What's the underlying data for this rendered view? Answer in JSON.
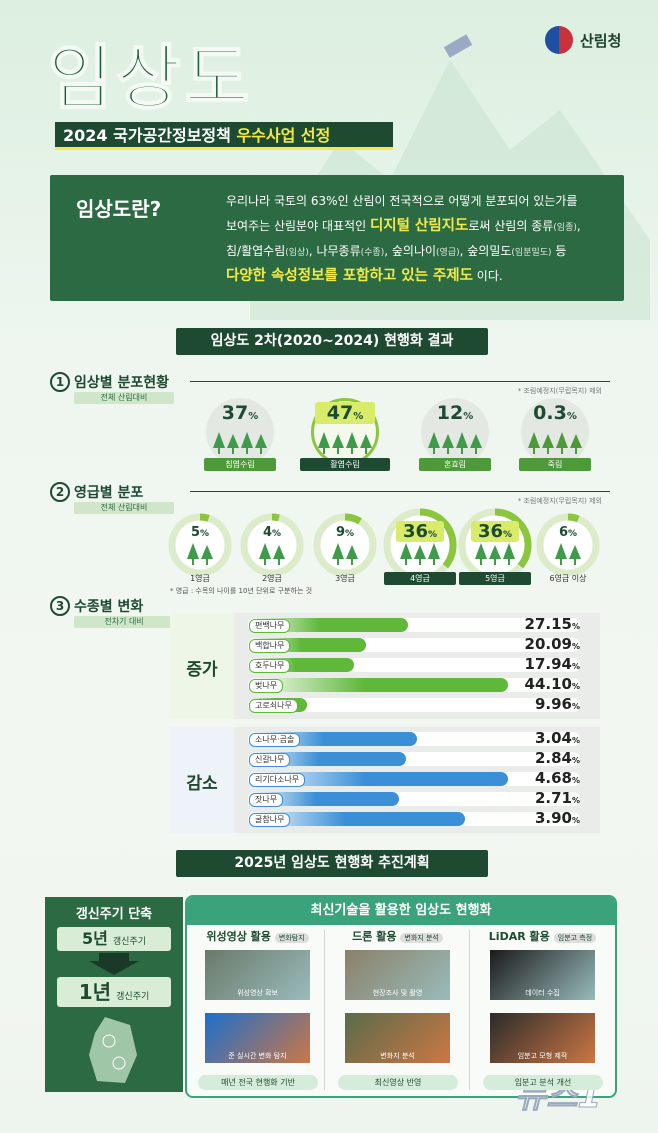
{
  "logo": "산림청",
  "title": "임상도",
  "subtitle": {
    "text": "2024 국가공간정보정책",
    "highlight": "우수사업 선정"
  },
  "definition": {
    "heading": "임상도란?",
    "lines": [
      [
        "우리나라 국토의 63%인 산림이 전국적으로 어떻게 분포되어 있는가를"
      ],
      [
        "보여주는 산림분야 대표적인 ",
        "디지털 산림지도",
        "로써 산림의 종류",
        "(임종)",
        ","
      ],
      [
        "침/활엽수림",
        "(임상)",
        ", 나무종류",
        "(수종)",
        ", 숲의나이",
        "(영급)",
        ", 숲의밀도",
        "(임분밀도)",
        " 등"
      ],
      [
        "다양한 속성정보를 포함하고 있는 ",
        "주제도",
        " 이다."
      ]
    ]
  },
  "results": {
    "heading": "임상도 2차(2020~2024) 현행화 결과",
    "sections": [
      {
        "number": 1,
        "title": "임상별 분포현황",
        "basis": "전체 산림대비",
        "note": "* 조림예정지(무립목지) 제외",
        "items": [
          {
            "value": 37,
            "unit": "%",
            "name": "침엽수림"
          },
          {
            "value": 47,
            "unit": "%",
            "name": "활엽수림",
            "highlight": true
          },
          {
            "value": 12,
            "unit": "%",
            "name": "혼효림"
          },
          {
            "value": 0.3,
            "unit": "%",
            "name": "죽림"
          }
        ]
      },
      {
        "number": 2,
        "title": "영급별 분포",
        "basis": "전체 산림대비",
        "note": "* 조림예정지(무립목지) 제외",
        "items": [
          {
            "value": 5,
            "unit": "%",
            "name": "1영급"
          },
          {
            "value": 4,
            "unit": "%",
            "name": "2영급"
          },
          {
            "value": 9,
            "unit": "%",
            "name": "3영급"
          },
          {
            "value": 36,
            "unit": "%",
            "name": "4영급",
            "highlight": true
          },
          {
            "value": 36,
            "unit": "%",
            "name": "5영급",
            "highlight": true
          },
          {
            "value": 6,
            "unit": "%",
            "name": "6영급 이상"
          }
        ],
        "footnote": "* 영급 : 수목의 나이를 10년 단위로 구분하는 것"
      },
      {
        "number": 3,
        "title": "수종별 변화",
        "basis": "전차기 대비",
        "groups": [
          {
            "label": "증가",
            "color": "#5fb83a",
            "names": [
              "편백나무",
              "백합나무",
              "호두나무",
              "벚나무",
              "고로쇠나무"
            ],
            "values": [
              27.15,
              20.09,
              17.94,
              44.1,
              9.96
            ],
            "value_labels": [
              "27.15",
              "20.09",
              "17.94",
              "44.10",
              "9.96"
            ],
            "unit": "%"
          },
          {
            "label": "감소",
            "color": "#3a8fd6",
            "names": [
              "소나무·곰솔",
              "신갈나무",
              "리기다소나무",
              "잣나무",
              "굴참나무"
            ],
            "values": [
              3.04,
              2.84,
              4.68,
              2.71,
              3.9
            ],
            "value_labels": [
              "3.04",
              "2.84",
              "4.68",
              "2.71",
              "3.90"
            ],
            "unit": "%"
          }
        ]
      }
    ]
  },
  "plan": {
    "heading": "2025년 임상도 현행화 추진계획",
    "cycle": {
      "title": "갱신주기 단축",
      "before": {
        "value": "5년",
        "label": "갱신주기"
      },
      "after": {
        "value": "1년",
        "label": "갱신주기"
      }
    },
    "tech": {
      "title": "최신기술을 활용한 임상도 현행화",
      "columns": [
        {
          "name": "위성영상 활용",
          "tag": "변화탐지",
          "captions": [
            "위성영상 확보",
            "준 실시간 변화 탐지"
          ],
          "result": "매년 전국 현행화 기반"
        },
        {
          "name": "드론 활용",
          "tag": "변화지 분석",
          "captions": [
            "현장조사 및 촬영",
            "변화지 분석"
          ],
          "result": "최신영상 반영"
        },
        {
          "name": "LiDAR 활용",
          "tag": "임분고 측정",
          "captions": [
            "데이터 수집",
            "임분고 모형 제작"
          ],
          "result": "임분고 분석 개선"
        }
      ]
    }
  },
  "watermark": "뉴스1"
}
